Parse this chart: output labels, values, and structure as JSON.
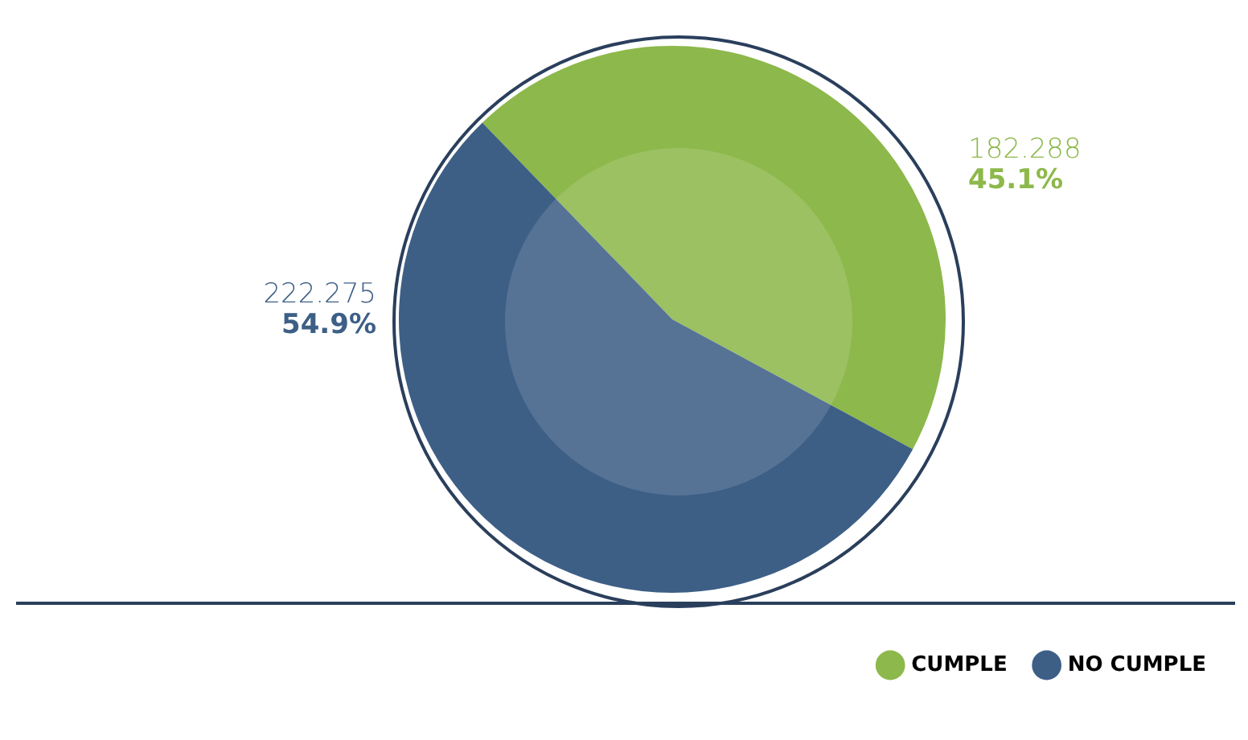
{
  "chart_data": {
    "type": "pie",
    "categories": [
      "CUMPLE",
      "NO CUMPLE"
    ],
    "values": [
      45.1,
      54.9
    ],
    "annotations": [
      "182.288",
      "222.275"
    ],
    "colors": [
      "#8db84b",
      "#3d5f86"
    ],
    "value_labels": [
      "45.1%",
      "54.9%"
    ],
    "legend": "bottom right"
  }
}
